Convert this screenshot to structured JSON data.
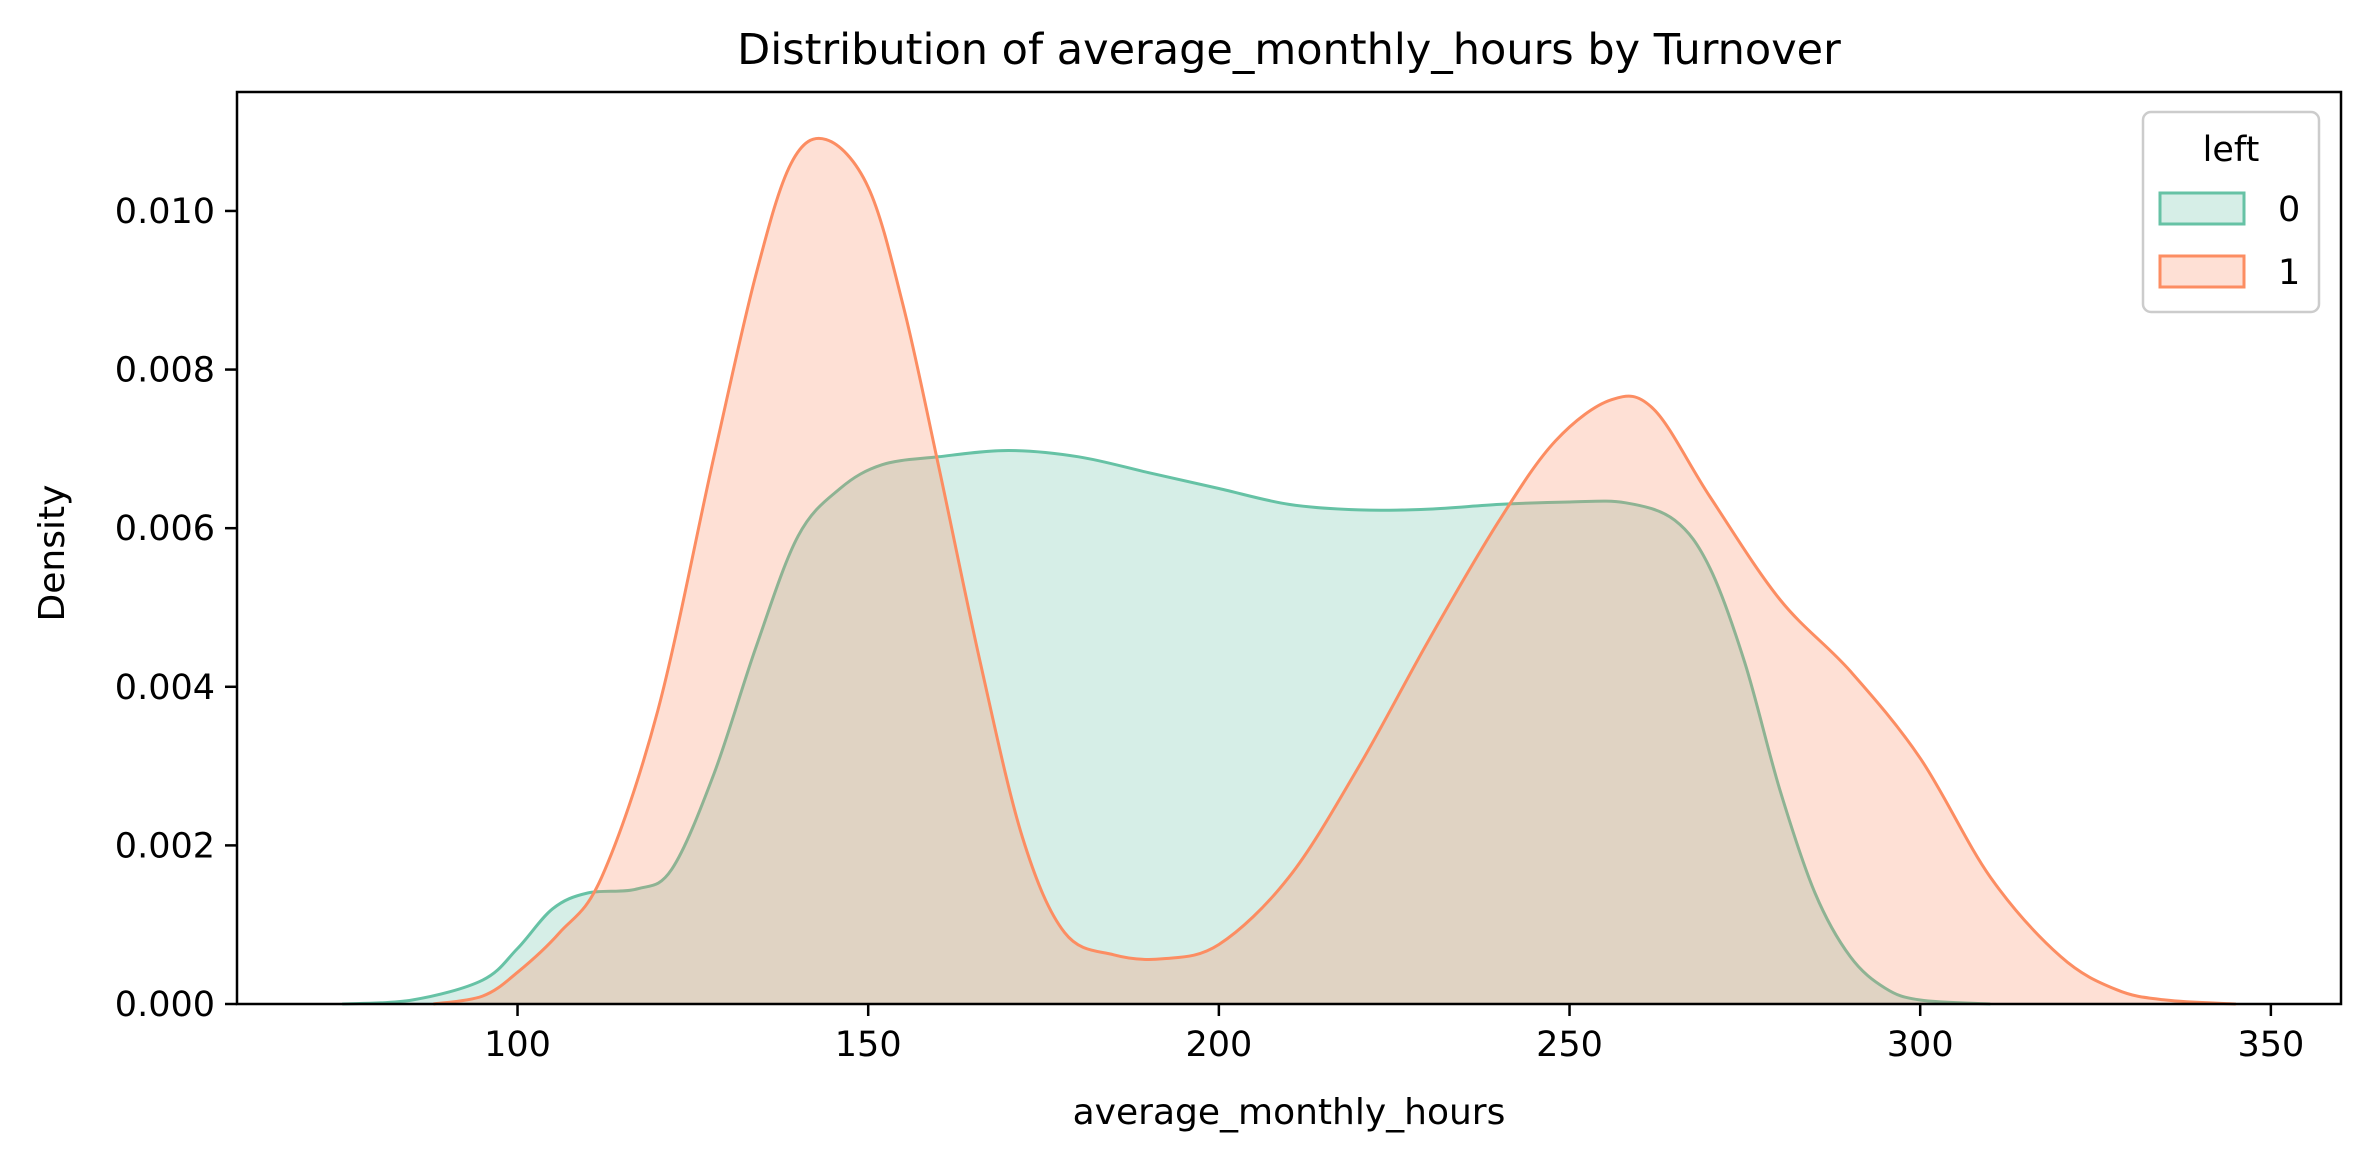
{
  "chart_data": {
    "type": "area",
    "title": "Distribution of average_monthly_hours by Turnover",
    "xlabel": "average_monthly_hours",
    "ylabel": "Density",
    "xlim": [
      60,
      360
    ],
    "ylim": [
      0,
      0.0115
    ],
    "xticks": [
      100,
      150,
      200,
      250,
      300,
      350
    ],
    "yticks": [
      0.0,
      0.002,
      0.004,
      0.006,
      0.008,
      0.01
    ],
    "ytick_labels": [
      "0.000",
      "0.002",
      "0.004",
      "0.006",
      "0.008",
      "0.010"
    ],
    "grid": false,
    "legend": {
      "title": "left",
      "position": "top-right"
    },
    "series": [
      {
        "name": "0",
        "color": "#66c2a5",
        "fill_opacity": 0.27,
        "points": [
          [
            75,
            0.0
          ],
          [
            85,
            5e-05
          ],
          [
            95,
            0.0003
          ],
          [
            100,
            0.0007
          ],
          [
            105,
            0.0012
          ],
          [
            110,
            0.0014
          ],
          [
            117,
            0.00145
          ],
          [
            122,
            0.0017
          ],
          [
            128,
            0.0029
          ],
          [
            134,
            0.0045
          ],
          [
            140,
            0.0059
          ],
          [
            146,
            0.0065
          ],
          [
            152,
            0.0068
          ],
          [
            160,
            0.0069
          ],
          [
            170,
            0.00698
          ],
          [
            180,
            0.0069
          ],
          [
            190,
            0.0067
          ],
          [
            200,
            0.0065
          ],
          [
            210,
            0.0063
          ],
          [
            220,
            0.00623
          ],
          [
            230,
            0.00624
          ],
          [
            240,
            0.0063
          ],
          [
            250,
            0.00633
          ],
          [
            258,
            0.00632
          ],
          [
            265,
            0.0061
          ],
          [
            270,
            0.0055
          ],
          [
            275,
            0.0043
          ],
          [
            280,
            0.0027
          ],
          [
            285,
            0.0014
          ],
          [
            290,
            0.0006
          ],
          [
            295,
            0.0002
          ],
          [
            300,
            5e-05
          ],
          [
            310,
            0.0
          ]
        ]
      },
      {
        "name": "1",
        "color": "#fc8d62",
        "fill_opacity": 0.27,
        "points": [
          [
            88,
            0.0
          ],
          [
            95,
            0.0001
          ],
          [
            100,
            0.0004
          ],
          [
            106,
            0.0009
          ],
          [
            112,
            0.0016
          ],
          [
            120,
            0.0037
          ],
          [
            128,
            0.0069
          ],
          [
            134,
            0.0092
          ],
          [
            139,
            0.0106
          ],
          [
            144,
            0.0109
          ],
          [
            150,
            0.0103
          ],
          [
            155,
            0.0088
          ],
          [
            160,
            0.0068
          ],
          [
            166,
            0.0043
          ],
          [
            172,
            0.0021
          ],
          [
            178,
            0.0009
          ],
          [
            185,
            0.00062
          ],
          [
            192,
            0.00057
          ],
          [
            200,
            0.00075
          ],
          [
            210,
            0.0016
          ],
          [
            220,
            0.003
          ],
          [
            230,
            0.0046
          ],
          [
            240,
            0.0061
          ],
          [
            248,
            0.0071
          ],
          [
            256,
            0.00762
          ],
          [
            262,
            0.0075
          ],
          [
            270,
            0.0064
          ],
          [
            280,
            0.0051
          ],
          [
            290,
            0.0042
          ],
          [
            300,
            0.0031
          ],
          [
            310,
            0.0016
          ],
          [
            320,
            0.0006
          ],
          [
            328,
            0.00018
          ],
          [
            335,
            5e-05
          ],
          [
            345,
            0.0
          ]
        ]
      }
    ]
  }
}
